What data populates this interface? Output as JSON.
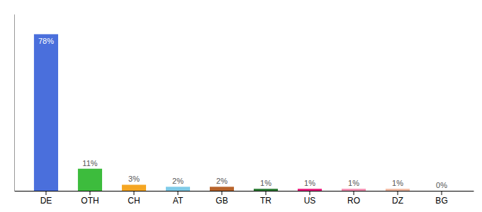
{
  "chart_data": {
    "type": "bar",
    "categories": [
      "DE",
      "OTH",
      "CH",
      "AT",
      "GB",
      "TR",
      "US",
      "RO",
      "DZ",
      "BG"
    ],
    "values": [
      78,
      11,
      3,
      2,
      2,
      1,
      1,
      1,
      1,
      0
    ],
    "value_labels": [
      "78%",
      "11%",
      "3%",
      "2%",
      "2%",
      "1%",
      "1%",
      "1%",
      "1%",
      "0%"
    ],
    "colors": [
      "#4a6fdc",
      "#3dbc3d",
      "#f5a623",
      "#7ecbe8",
      "#b8632a",
      "#2a7a32",
      "#e8197a",
      "#f48fb1",
      "#f0b8a0",
      "#c8c8c8"
    ],
    "ylim": [
      0,
      88
    ],
    "data_labels": true,
    "tick_labels": "x"
  }
}
